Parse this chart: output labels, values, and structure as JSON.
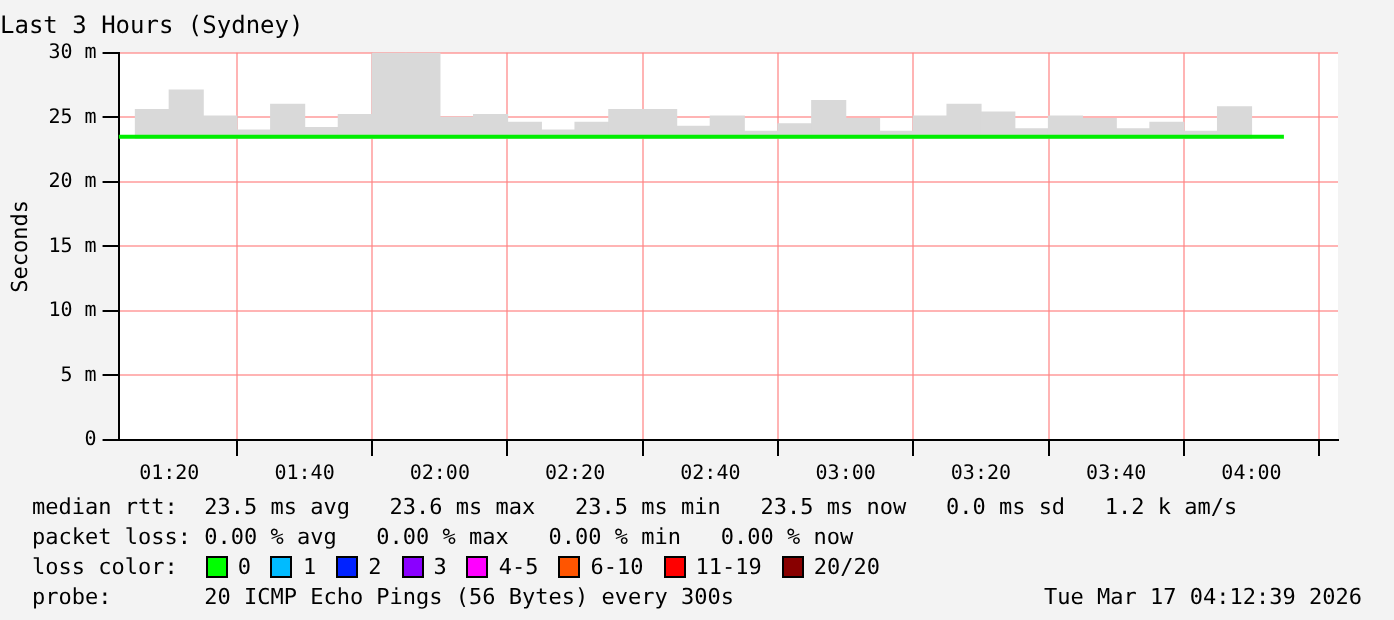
{
  "chart_data": {
    "type": "bar",
    "title": "Last 3 Hours (Sydney)",
    "ylabel": "Seconds",
    "series": [
      {
        "color": "#d9d9d9",
        "x": [
          1.2917,
          1.375,
          1.4583,
          1.5417,
          1.625,
          1.7083,
          1.7917,
          1.875,
          1.9583,
          2.0417,
          2.125,
          2.2083,
          2.2917,
          2.375,
          2.4583,
          2.5417,
          2.625,
          2.7083,
          2.7917,
          2.875,
          2.9583,
          3.0417,
          3.125,
          3.2083,
          3.2917,
          3.375,
          3.4583,
          3.5417,
          3.625,
          3.7083,
          3.7917,
          3.875,
          3.9583
        ],
        "values": [
          2.2,
          3.7,
          1.7,
          0.6,
          2.6,
          0.8,
          1.8,
          6.6,
          6.6,
          1.6,
          1.8,
          1.2,
          0.6,
          1.2,
          2.2,
          2.2,
          0.9,
          1.7,
          0.5,
          1.1,
          2.9,
          1.5,
          0.5,
          1.7,
          2.6,
          2.0,
          0.7,
          1.7,
          1.5,
          0.7,
          1.2,
          0.5,
          2.4
        ],
        "base": [
          23.4,
          23.4,
          23.4,
          23.4,
          23.4,
          23.4,
          23.4,
          23.4,
          23.4,
          23.4,
          23.4,
          23.4,
          23.4,
          23.4,
          23.4,
          23.4,
          23.4,
          23.4,
          23.4,
          23.4,
          23.4,
          23.4,
          23.4,
          23.4,
          23.4,
          23.4,
          23.4,
          23.4,
          23.4,
          23.4,
          23.4,
          23.4,
          23.4
        ]
      },
      {
        "type": "line",
        "color": "#00ee00",
        "x": [
          1.2083,
          4.08
        ],
        "values": [
          23.5,
          23.5
        ]
      }
    ],
    "xlim": [
      1.2083,
      4.2133
    ],
    "xticks": [
      {
        "value": 1.3333,
        "label": "01:20"
      },
      {
        "value": 1.6667,
        "label": "01:40"
      },
      {
        "value": 2,
        "label": "02:00"
      },
      {
        "value": 2.3333,
        "label": "02:20"
      },
      {
        "value": 2.6667,
        "label": "02:40"
      },
      {
        "value": 3,
        "label": "03:00"
      },
      {
        "value": 3.3333,
        "label": "03:20"
      },
      {
        "value": 3.6667,
        "label": "03:40"
      },
      {
        "value": 4,
        "label": "04:00"
      }
    ],
    "ylim": [
      0,
      30
    ],
    "yticks": [
      0,
      {
        "value": 5,
        "label": "5 m"
      },
      {
        "value": 10,
        "label": "10 m"
      },
      {
        "value": 15,
        "label": "15 m"
      },
      {
        "value": 20,
        "label": "20 m"
      },
      {
        "value": 25,
        "label": "25 m"
      },
      {
        "value": 30,
        "label": "30 m"
      }
    ],
    "grid": true,
    "legend": false,
    "marker": "none",
    "line_style": "solid",
    "annotations": [
      "median rtt:  23.5 ms avg   23.6 ms max   23.5 ms min   23.5 ms now   0.0 ms sd   1.2 k am/s",
      "packet loss: 0.00 % avg   0.00 % max   0.00 % min   0.00 % now",
      "loss color:",
      "0",
      "1",
      "2",
      "3",
      "4-5",
      "6-10",
      "11-19",
      "20/20",
      "probe:       20 ICMP Echo Pings (56 Bytes) every 300s",
      "Tue Mar 17 04:12:39 2026"
    ]
  }
}
